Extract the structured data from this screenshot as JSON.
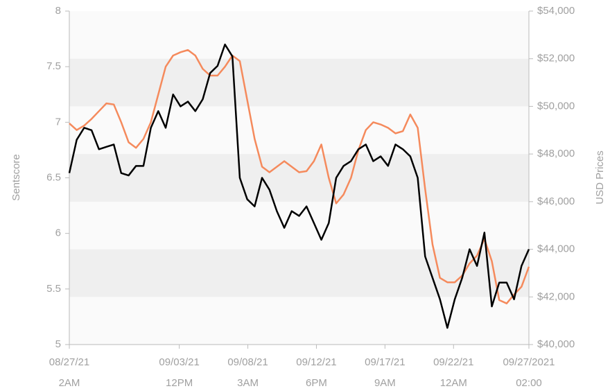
{
  "chart_data": {
    "type": "line",
    "ylabel": "Sentscore",
    "y2label": "USD Prices",
    "xlim": [
      "2021-08-27T02:00",
      "2021-09-27T02:00"
    ],
    "xticks": [
      {
        "value": "2021-08-27T02:00",
        "label": [
          "08/27/21",
          "2AM"
        ]
      },
      {
        "value": "2021-09-03T12:00",
        "label": [
          "09/03/21",
          "12PM"
        ]
      },
      {
        "value": "2021-09-08T03:00",
        "label": [
          "09/08/21",
          "3AM"
        ]
      },
      {
        "value": "2021-09-12T18:00",
        "label": [
          "09/12/21",
          "6PM"
        ]
      },
      {
        "value": "2021-09-17T09:00",
        "label": [
          "09/17/21",
          "9AM"
        ]
      },
      {
        "value": "2021-09-22T00:00",
        "label": [
          "09/22/21",
          "12AM"
        ]
      },
      {
        "value": "2021-09-27T02:00",
        "label": [
          "09/27/2021",
          "02:00"
        ]
      }
    ],
    "ylim": [
      5,
      8
    ],
    "yticks": [
      5,
      5.5,
      6,
      6.5,
      7,
      7.5,
      8
    ],
    "y2lim": [
      40000,
      54000
    ],
    "y2ticks": [
      {
        "value": 40000,
        "label": "$40,000"
      },
      {
        "value": 42000,
        "label": "$42,000"
      },
      {
        "value": 44000,
        "label": "$44,000"
      },
      {
        "value": 46000,
        "label": "$46,000"
      },
      {
        "value": 48000,
        "label": "$48,000"
      },
      {
        "value": 50000,
        "label": "$50,000"
      },
      {
        "value": 52000,
        "label": "$52,000"
      },
      {
        "value": 54000,
        "label": "$54,000"
      }
    ],
    "bands": true,
    "x": [
      "2021-08-27T02:00",
      "2021-08-27T14:00",
      "2021-08-28T02:00",
      "2021-08-28T14:00",
      "2021-08-29T02:00",
      "2021-08-29T14:00",
      "2021-08-30T02:00",
      "2021-08-30T14:00",
      "2021-08-31T02:00",
      "2021-08-31T14:00",
      "2021-09-01T02:00",
      "2021-09-01T14:00",
      "2021-09-02T02:00",
      "2021-09-02T14:00",
      "2021-09-03T02:00",
      "2021-09-03T14:00",
      "2021-09-04T02:00",
      "2021-09-04T14:00",
      "2021-09-05T02:00",
      "2021-09-05T14:00",
      "2021-09-06T02:00",
      "2021-09-06T14:00",
      "2021-09-07T02:00",
      "2021-09-07T14:00",
      "2021-09-08T02:00",
      "2021-09-08T14:00",
      "2021-09-09T02:00",
      "2021-09-09T14:00",
      "2021-09-10T02:00",
      "2021-09-10T14:00",
      "2021-09-11T02:00",
      "2021-09-11T14:00",
      "2021-09-12T02:00",
      "2021-09-12T14:00",
      "2021-09-13T02:00",
      "2021-09-13T14:00",
      "2021-09-14T02:00",
      "2021-09-14T14:00",
      "2021-09-15T02:00",
      "2021-09-15T14:00",
      "2021-09-16T02:00",
      "2021-09-16T14:00",
      "2021-09-17T02:00",
      "2021-09-17T14:00",
      "2021-09-18T02:00",
      "2021-09-18T14:00",
      "2021-09-19T02:00",
      "2021-09-19T14:00",
      "2021-09-20T02:00",
      "2021-09-20T14:00",
      "2021-09-21T02:00",
      "2021-09-21T14:00",
      "2021-09-22T02:00",
      "2021-09-22T14:00",
      "2021-09-23T02:00",
      "2021-09-23T14:00",
      "2021-09-24T02:00",
      "2021-09-24T14:00",
      "2021-09-25T02:00",
      "2021-09-25T14:00",
      "2021-09-26T02:00",
      "2021-09-26T14:00",
      "2021-09-27T02:00"
    ],
    "series": [
      {
        "color": "#f58a5c",
        "values": [
          6.99,
          6.93,
          6.97,
          7.03,
          7.1,
          7.17,
          7.16,
          7.0,
          6.82,
          6.77,
          6.85,
          7.0,
          7.25,
          7.5,
          7.6,
          7.63,
          7.65,
          7.6,
          7.48,
          7.42,
          7.42,
          7.5,
          7.6,
          7.55,
          7.2,
          6.85,
          6.6,
          6.55,
          6.6,
          6.65,
          6.6,
          6.55,
          6.56,
          6.65,
          6.8,
          6.5,
          6.27,
          6.35,
          6.5,
          6.75,
          6.93,
          7.0,
          6.98,
          6.95,
          6.9,
          6.92,
          7.07,
          6.95,
          6.4,
          5.9,
          5.6,
          5.56,
          5.56,
          5.62,
          5.73,
          5.8,
          5.95,
          5.75,
          5.4,
          5.37,
          5.45,
          5.52,
          5.7
        ]
      },
      {
        "color": "#000000",
        "axis": "y2",
        "values": [
          47200,
          48600,
          49100,
          49000,
          48200,
          48300,
          48400,
          47200,
          47100,
          47500,
          47500,
          49100,
          49800,
          49100,
          50500,
          50000,
          50200,
          49800,
          50300,
          51400,
          51700,
          52600,
          52100,
          47000,
          46100,
          45800,
          47000,
          46500,
          45600,
          44900,
          45600,
          45400,
          45800,
          45100,
          44400,
          45100,
          47000,
          47500,
          47700,
          48200,
          48400,
          47700,
          47900,
          47500,
          48400,
          48200,
          47900,
          47000,
          43700,
          42800,
          41900,
          40700,
          41900,
          42800,
          44000,
          43300,
          44700,
          41600,
          42600,
          42600,
          41900,
          43300,
          44000
        ]
      }
    ]
  }
}
